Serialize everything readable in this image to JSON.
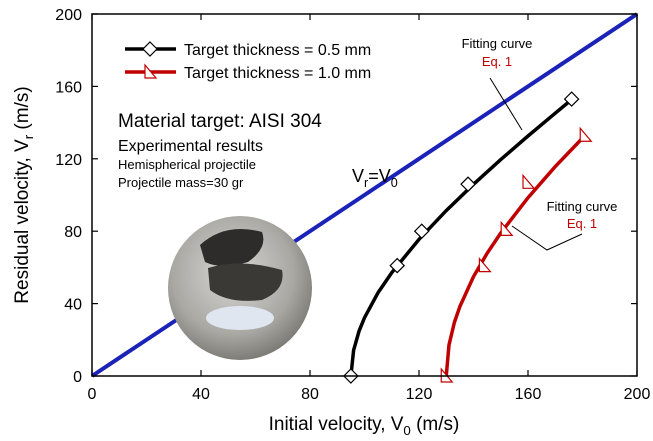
{
  "chart_data": {
    "type": "line",
    "xlabel": [
      {
        "text": "Initial velocity, V"
      },
      {
        "text": "0",
        "sub": true
      },
      {
        "text": " (m/s)"
      }
    ],
    "ylabel": [
      {
        "text": "Residual velocity, V"
      },
      {
        "text": "r",
        "sub": true
      },
      {
        "text": " (m/s)"
      }
    ],
    "xlim": [
      0,
      200
    ],
    "ylim": [
      0,
      200
    ],
    "xticks": [
      0,
      40,
      80,
      120,
      160,
      200
    ],
    "yticks": [
      0,
      40,
      80,
      120,
      160,
      200
    ],
    "series": [
      {
        "name": "Target thickness = 0.5 mm",
        "color": "#000000",
        "marker": "diamond",
        "x": [
          95,
          112,
          121,
          138,
          176
        ],
        "values": [
          0,
          61,
          80,
          106,
          153
        ],
        "fit_x": [
          95,
          96,
          98,
          100,
          105,
          110,
          120,
          130,
          140,
          150,
          160,
          170,
          176
        ],
        "fit_values": [
          0,
          14.2,
          24.8,
          32.2,
          46.1,
          57.1,
          75.5,
          91.4,
          105.9,
          119.6,
          132.6,
          145.2,
          152.7
        ]
      },
      {
        "name": "Target thickness = 1.0 mm",
        "color": "#c00000",
        "marker": "triangle",
        "x": [
          130,
          144,
          152,
          160,
          181
        ],
        "values": [
          0,
          61,
          81,
          107,
          133
        ],
        "fit_x": [
          130,
          131,
          133,
          135,
          140,
          145,
          150,
          160,
          170,
          181
        ],
        "fit_values": [
          0,
          17.1,
          29.7,
          38.4,
          54.9,
          67.8,
          79,
          98.5,
          115.7,
          133
        ]
      }
    ],
    "reference_line": {
      "color": "#1a22b8",
      "x": [
        0,
        200
      ],
      "values": [
        0,
        200
      ],
      "label": [
        {
          "text": "V"
        },
        {
          "text": "r",
          "sub": true
        },
        {
          "text": "=V"
        },
        {
          "text": "0",
          "sub": true
        }
      ]
    },
    "fit_labels": [
      {
        "title": "Fitting curve",
        "eq": "Eq. 1"
      },
      {
        "title": "Fitting curve",
        "eq": "Eq. 1"
      }
    ],
    "text_block": [
      "Material target: AISI 304",
      "Experimental results",
      "Hemispherical projectile",
      "Projectile mass=30 gr"
    ]
  }
}
